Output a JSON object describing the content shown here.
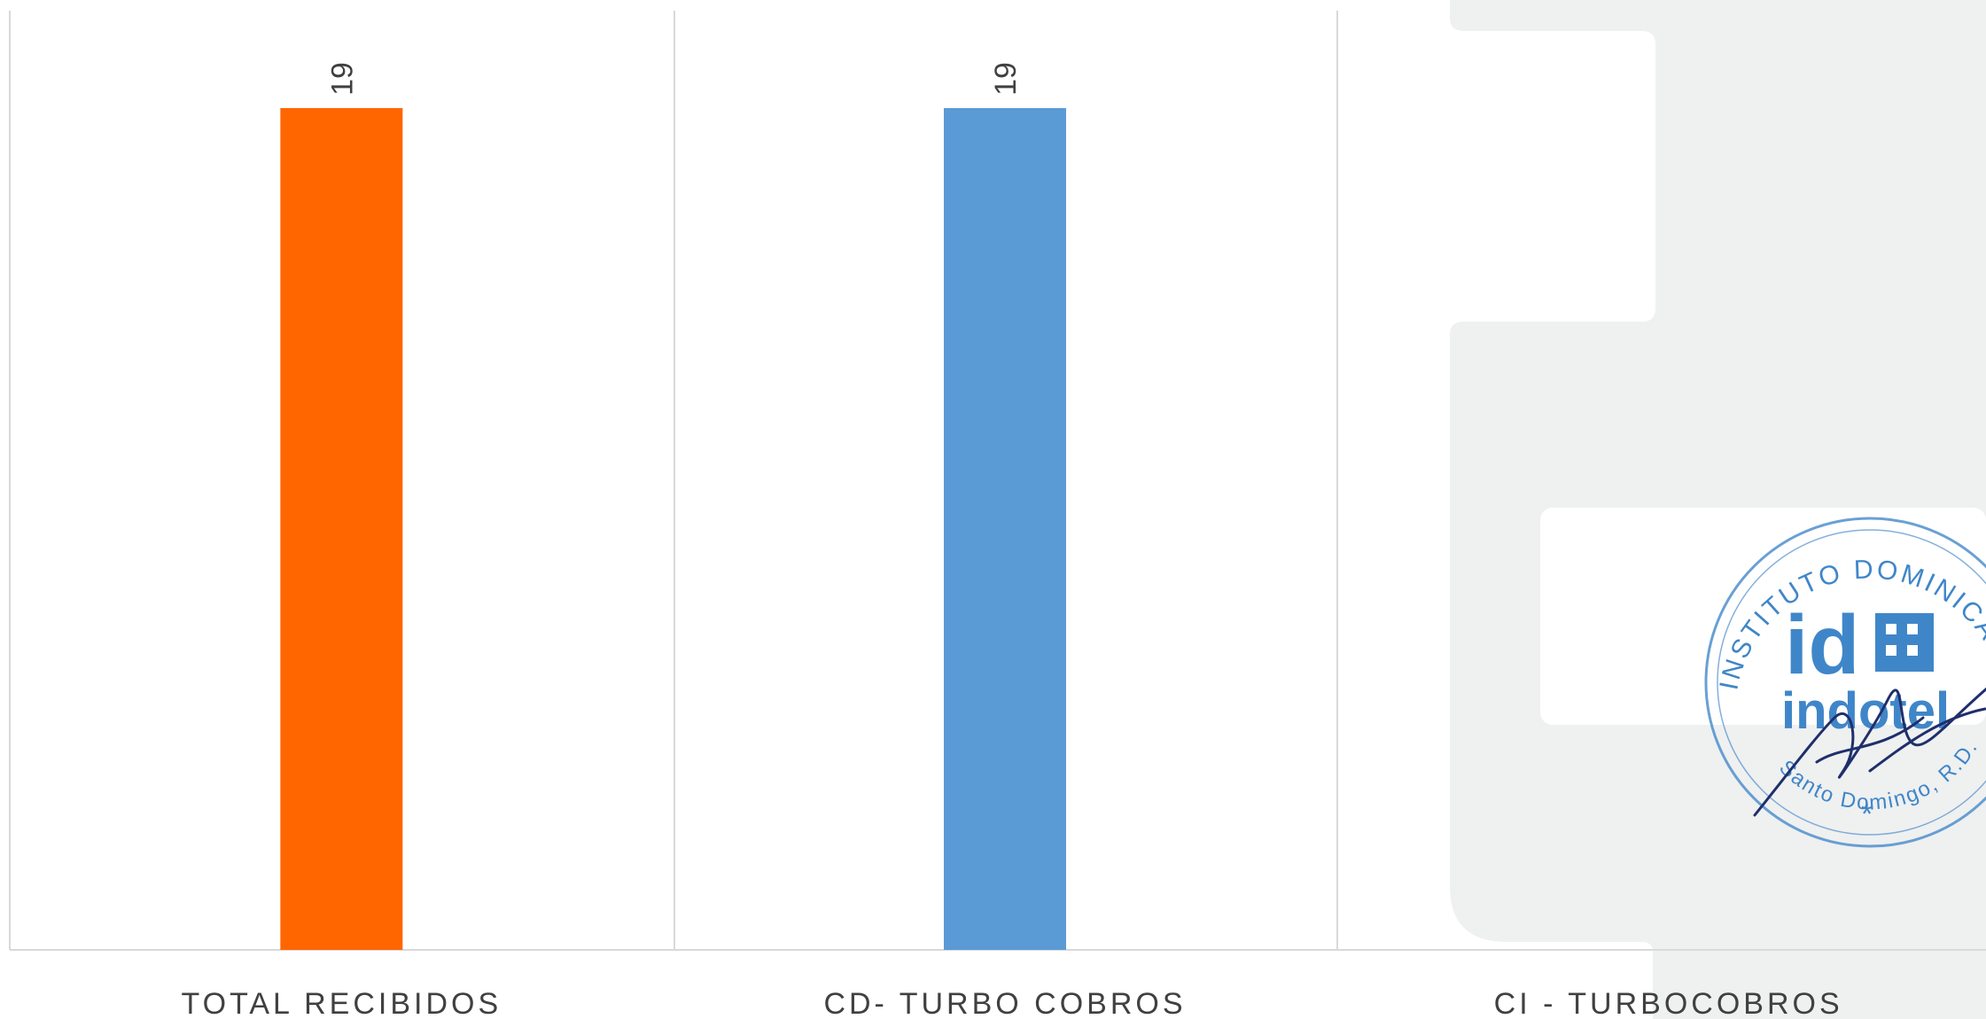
{
  "chart_data": {
    "type": "bar",
    "categories": [
      "TOTAL RECIBIDOS",
      "CD- TURBO COBROS",
      "CI - TURBOCOBROS"
    ],
    "values": [
      19,
      19,
      null
    ],
    "data_labels": [
      "19",
      "19",
      ""
    ],
    "ylim": [
      0,
      20
    ],
    "grid": "vertical category separators",
    "colors": [
      "#FF6600",
      "#5B9BD5",
      "#A5A5A5"
    ],
    "stamp": {
      "ring_text": "INSTITUTO DOMINICANO DE LAS TELECOMUNICACIONES",
      "brand": "indotel",
      "location": "Santo Domingo, R.D."
    }
  }
}
